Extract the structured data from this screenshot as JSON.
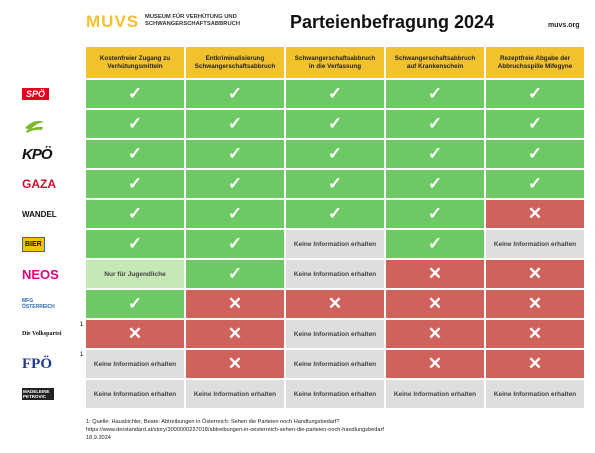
{
  "header": {
    "logo": "MUVS",
    "logo_subtitle": [
      "MUSEUM FÜR VERHÜTUNG UND",
      "SCHWANGERSCHAFTSABBRUCH"
    ],
    "title": "Parteienbefragung 2024",
    "website": "muvs.org"
  },
  "table": {
    "columns": [
      "Kostenfreier Zugang zu Verhütungsmitteln",
      "Entkriminalisierung Schwangerschaftsabbruch",
      "Schwangerschaftsabbruch in die Verfassung",
      "Schwangerschaftsabbruch auf Krankenschein",
      "Rezeptfreie Abgabe der Abbruchsspille Mifegyne"
    ],
    "rows": [
      {
        "party": "SPÖ",
        "cells": [
          {
            "text": "✓",
            "color": "#6cc964"
          },
          {
            "text": "✓",
            "color": "#6cc964"
          },
          {
            "text": "✓",
            "color": "#6cc964"
          },
          {
            "text": "✓",
            "color": "#6cc964"
          },
          {
            "text": "✓",
            "color": "#6cc964"
          }
        ]
      },
      {
        "party": null,
        "cells": [
          {
            "text": "✓",
            "color": "#6cc964"
          },
          {
            "text": "✓",
            "color": "#6cc964"
          },
          {
            "text": "✓",
            "color": "#6cc964"
          },
          {
            "text": "✓",
            "color": "#6cc964"
          },
          {
            "text": "✓",
            "color": "#6cc964"
          }
        ]
      },
      {
        "party": "KPÖ",
        "cells": [
          {
            "text": "✓",
            "color": "#6cc964"
          },
          {
            "text": "✓",
            "color": "#6cc964"
          },
          {
            "text": "✓",
            "color": "#6cc964"
          },
          {
            "text": "✓",
            "color": "#6cc964"
          },
          {
            "text": "✓",
            "color": "#6cc964"
          }
        ]
      },
      {
        "party": "GAZA",
        "cells": [
          {
            "text": "✓",
            "color": "#6cc964"
          },
          {
            "text": "✓",
            "color": "#6cc964"
          },
          {
            "text": "✓",
            "color": "#6cc964"
          },
          {
            "text": "✓",
            "color": "#6cc964"
          },
          {
            "text": "✓",
            "color": "#6cc964"
          }
        ]
      },
      {
        "party": "WANDEL",
        "cells": [
          {
            "text": "✓",
            "color": "#6cc964"
          },
          {
            "text": "✓",
            "color": "#6cc964"
          },
          {
            "text": "✓",
            "color": "#6cc964"
          },
          {
            "text": "✓",
            "color": "#6cc964"
          },
          {
            "text": "✕",
            "color": "#d0625c"
          }
        ]
      },
      {
        "party": "BIER",
        "cells": [
          {
            "text": "✓",
            "color": "#6cc964"
          },
          {
            "text": "✓",
            "color": "#6cc964"
          },
          {
            "text": "Keine Information erhalten",
            "color": "#dedede"
          },
          {
            "text": "✓",
            "color": "#6cc964"
          },
          {
            "text": "Keine Information erhalten",
            "color": "#dedede"
          }
        ]
      },
      {
        "party": "NEOS",
        "cells": [
          {
            "text": "Nur für Jugendliche",
            "color": "#c6e8b4"
          },
          {
            "text": "✓",
            "color": "#6cc964"
          },
          {
            "text": "Keine Information erhalten",
            "color": "#dedede"
          },
          {
            "text": "✕",
            "color": "#d0625c"
          },
          {
            "text": "✕",
            "color": "#d0625c"
          }
        ]
      },
      {
        "party": "MFG ÖSTERREICH",
        "cells": [
          {
            "text": "✓",
            "color": "#6cc964"
          },
          {
            "text": "✕",
            "color": "#d0625c"
          },
          {
            "text": "✕",
            "color": "#d0625c"
          },
          {
            "text": "✕",
            "color": "#d0625c"
          },
          {
            "text": "✕",
            "color": "#d0625c"
          }
        ]
      },
      {
        "party": "Die Volkspartei",
        "footnote": "1",
        "cells": [
          {
            "text": "✕",
            "color": "#d0625c"
          },
          {
            "text": "✕",
            "color": "#d0625c"
          },
          {
            "text": "Keine Information erhalten",
            "color": "#dedede"
          },
          {
            "text": "✕",
            "color": "#d0625c"
          },
          {
            "text": "✕",
            "color": "#d0625c"
          }
        ]
      },
      {
        "party": "FPÖ",
        "footnote": "1",
        "cells": [
          {
            "text": "Keine Information erhalten",
            "color": "#dedede"
          },
          {
            "text": "✕",
            "color": "#d0625c"
          },
          {
            "text": "Keine Information erhalten",
            "color": "#dedede"
          },
          {
            "text": "✕",
            "color": "#d0625c"
          },
          {
            "text": "✕",
            "color": "#d0625c"
          }
        ]
      },
      {
        "party": "MADELEINE PETROVIC",
        "cells": [
          {
            "text": "Keine Information erhalten",
            "color": "#dedede"
          },
          {
            "text": "Keine Information erhalten",
            "color": "#dedede"
          },
          {
            "text": "Keine Information erhalten",
            "color": "#dedede"
          },
          {
            "text": "Keine Information erhalten",
            "color": "#dedede"
          },
          {
            "text": "Keine Information erhalten",
            "color": "#dedede"
          }
        ]
      }
    ]
  },
  "footer": [
    "1: Quelle: Hausbichler, Beate: Abtreibungen in Österreich: Sehen die Parteien noch Handlungsbedarf?",
    "https://www.derstandard.at/story/3000000237018/abtreibungen-in-oesterreich-sehen-die-parteien-noch-handlungsbedarf",
    "18.9.2024"
  ]
}
